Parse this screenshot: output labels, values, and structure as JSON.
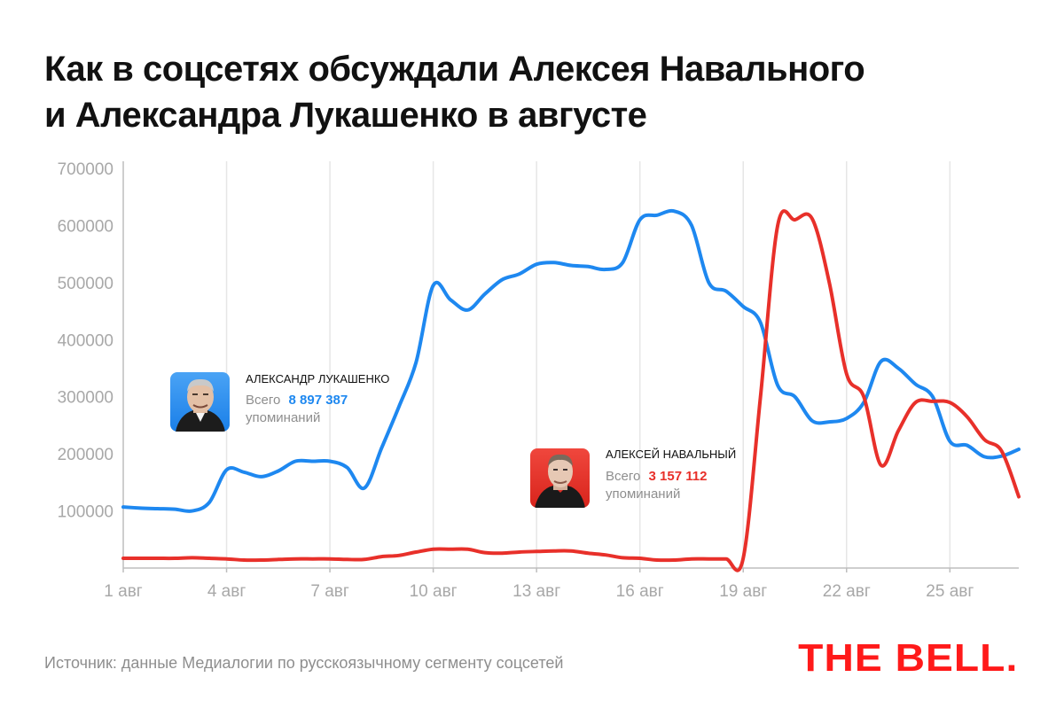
{
  "title": {
    "line1": "Как в соцсетях обсуждали Алексея Навального",
    "line2": "и Александра Лукашенко в августе"
  },
  "source": "Источник: данные Медиалогии по русскоязычному сегменту соцсетей",
  "logo": "THE BELL.",
  "legend": {
    "lukashenko": {
      "name": "АЛЕКСАНДР ЛУКАШЕНКО",
      "total_prefix": "Всего",
      "total_value": "8 897 387",
      "total_suffix": "упоминаний",
      "color": "#1e88f0",
      "icon": "lukashenko-portrait-icon"
    },
    "navalny": {
      "name": "АЛЕКСЕЙ НАВАЛЬНЫЙ",
      "total_prefix": "Всего",
      "total_value": "3 157 112",
      "total_suffix": "упоминаний",
      "color": "#e8302a",
      "icon": "navalny-portrait-icon"
    }
  },
  "chart_data": {
    "type": "line",
    "x_unit": "август, день",
    "x": [
      1,
      1.5,
      2,
      2.5,
      3,
      3.5,
      4,
      4.5,
      5,
      5.5,
      6,
      6.5,
      7,
      7.5,
      8,
      8.5,
      9,
      9.5,
      10,
      10.5,
      11,
      11.5,
      12,
      12.5,
      13,
      13.5,
      14,
      14.5,
      15,
      15.5,
      16,
      16.5,
      17,
      17.5,
      18,
      18.5,
      19,
      19.5,
      20,
      20.5,
      21,
      21.5,
      22,
      22.5,
      23,
      23.5,
      24,
      24.5,
      25,
      25.5,
      26,
      26.5,
      27
    ],
    "x_ticks": [
      1,
      4,
      7,
      10,
      13,
      16,
      19,
      22,
      25
    ],
    "x_tick_labels": [
      "1 авг",
      "4 авг",
      "7 авг",
      "10 авг",
      "13 авг",
      "16 авг",
      "19 авг",
      "22 авг",
      "25 авг"
    ],
    "ylim": [
      0,
      700000
    ],
    "y_ticks": [
      100000,
      200000,
      300000,
      400000,
      500000,
      600000,
      700000
    ],
    "y_tick_labels": [
      "100000",
      "200000",
      "300000",
      "400000",
      "500000",
      "600000",
      "700000"
    ],
    "grid": "vertical",
    "series": [
      {
        "name": "АЛЕКСАНДР ЛУКАШЕНКО",
        "color": "#1e88f0",
        "values": [
          107000,
          105000,
          104000,
          103000,
          100000,
          115000,
          172000,
          168000,
          160000,
          170000,
          187000,
          187000,
          187000,
          176000,
          140000,
          210000,
          282000,
          360000,
          495000,
          470000,
          452000,
          480000,
          505000,
          515000,
          532000,
          535000,
          530000,
          528000,
          523000,
          535000,
          610000,
          618000,
          625000,
          600000,
          500000,
          485000,
          458000,
          430000,
          320000,
          300000,
          258000,
          256000,
          262000,
          290000,
          362000,
          350000,
          322000,
          300000,
          222000,
          215000,
          195000,
          196000,
          208000
        ]
      },
      {
        "name": "АЛЕКСЕЙ НАВАЛЬНЫЙ",
        "color": "#e8302a",
        "values": [
          17000,
          17000,
          17000,
          17000,
          18000,
          17000,
          16000,
          14000,
          14000,
          15000,
          16000,
          16000,
          16000,
          15000,
          15000,
          20000,
          22000,
          28000,
          33000,
          33000,
          33000,
          27000,
          26000,
          28000,
          29000,
          30000,
          30000,
          26000,
          23000,
          18000,
          17000,
          14000,
          14000,
          16000,
          16000,
          16000,
          17000,
          300000,
          600000,
          610000,
          612000,
          500000,
          340000,
          300000,
          180000,
          240000,
          290000,
          292000,
          290000,
          265000,
          225000,
          205000,
          125000
        ]
      }
    ]
  }
}
